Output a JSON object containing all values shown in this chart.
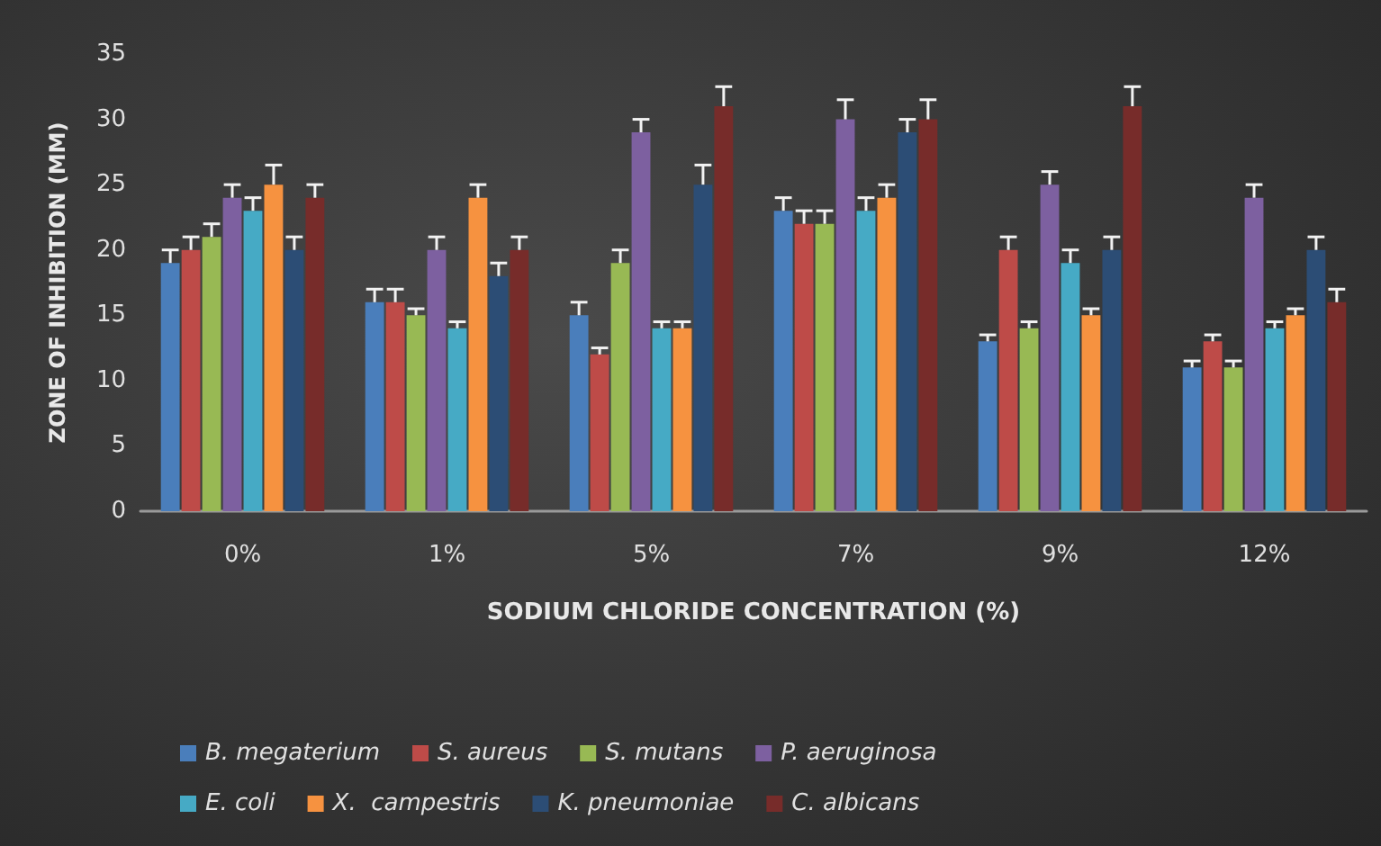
{
  "chart_data": {
    "type": "bar",
    "xlabel": "SODIUM CHLORIDE CONCENTRATION (%)",
    "ylabel": "ZONE OF INHIBITION (MM)",
    "categories": [
      "0%",
      "1%",
      "5%",
      "7%",
      "9%",
      "12%"
    ],
    "ylim": [
      0,
      35
    ],
    "yticks": [
      0,
      5,
      10,
      15,
      20,
      25,
      30,
      35
    ],
    "legend": "bottom",
    "series": [
      {
        "name": "B. megaterium",
        "color": "#4a7ebb",
        "values": [
          19,
          16,
          15,
          23,
          13,
          11
        ],
        "errors": [
          1,
          1,
          1,
          1,
          0.5,
          0.5
        ]
      },
      {
        "name": "S. aureus",
        "color": "#be4b48",
        "values": [
          20,
          16,
          12,
          22,
          20,
          13
        ],
        "errors": [
          1,
          1,
          0.5,
          1,
          1,
          0.5
        ]
      },
      {
        "name": "S. mutans",
        "color": "#98b954",
        "values": [
          21,
          15,
          19,
          22,
          14,
          11
        ],
        "errors": [
          1,
          0.5,
          1,
          1,
          0.5,
          0.5
        ]
      },
      {
        "name": "P. aeruginosa",
        "color": "#7d60a0",
        "values": [
          24,
          20,
          29,
          30,
          25,
          24
        ],
        "errors": [
          1,
          1,
          1,
          1.5,
          1,
          1
        ]
      },
      {
        "name": "E. coli",
        "color": "#46aac5",
        "values": [
          23,
          14,
          14,
          23,
          19,
          14
        ],
        "errors": [
          1,
          0.5,
          0.5,
          1,
          1,
          0.5
        ]
      },
      {
        "name": "X.  campestris",
        "color": "#f69240",
        "values": [
          25,
          24,
          14,
          24,
          15,
          15
        ],
        "errors": [
          1.5,
          1,
          0.5,
          1,
          0.5,
          0.5
        ]
      },
      {
        "name": "K. pneumoniae",
        "color": "#2c4d75",
        "values": [
          20,
          18,
          25,
          29,
          20,
          20
        ],
        "errors": [
          1,
          1,
          1.5,
          1,
          1,
          1
        ]
      },
      {
        "name": "C. albicans",
        "color": "#772c2a",
        "values": [
          24,
          20,
          31,
          30,
          31,
          16
        ],
        "errors": [
          1,
          1,
          1.5,
          1.5,
          1.5,
          1
        ]
      }
    ]
  }
}
